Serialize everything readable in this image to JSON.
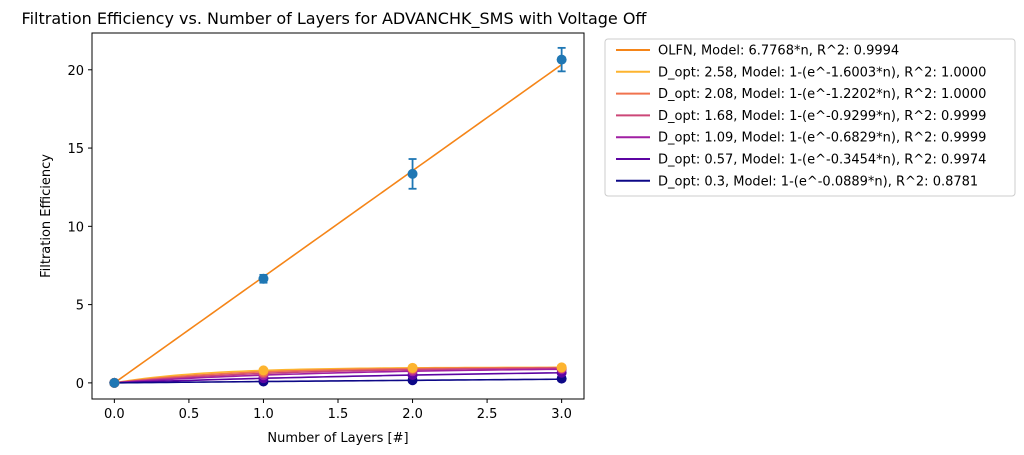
{
  "chart_data": {
    "type": "line",
    "title": "Filtration Efficiency vs. Number of Layers for ADVANCHK_SMS with Voltage Off",
    "xlabel": "Number of Layers [#]",
    "ylabel": "Filtration Efficiency",
    "xlim": [
      -0.15,
      3.15
    ],
    "ylim": [
      -1.03,
      22.35
    ],
    "x_ticks": [
      0.0,
      0.5,
      1.0,
      1.5,
      2.0,
      2.5,
      3.0
    ],
    "x_tick_labels": [
      "0.0",
      "0.5",
      "1.0",
      "1.5",
      "2.0",
      "2.5",
      "3.0"
    ],
    "y_ticks": [
      0,
      5,
      10,
      15,
      20
    ],
    "y_tick_labels": [
      "0",
      "5",
      "10",
      "15",
      "20"
    ],
    "grid": false,
    "legend_position": "outside-right-top",
    "measured": {
      "x": [
        0,
        1,
        2,
        3
      ],
      "y": [
        0,
        6.65,
        13.35,
        20.65
      ],
      "yerr": [
        0,
        0.25,
        0.95,
        0.75
      ],
      "color": "#1f77b4"
    },
    "series": [
      {
        "name": " OLFN, Model: 6.7768*n, R^2: 0.9994",
        "model": "linear",
        "k": 6.7768,
        "color": "#f58518",
        "x": [
          0,
          1,
          2,
          3
        ],
        "y": [
          0,
          6.65,
          13.35,
          20.65
        ]
      },
      {
        "name": "D_opt: 2.58, Model: 1-(e^-1.6003*n), R^2: 1.0000",
        "model": "exp",
        "k": 1.6003,
        "color": "#fdb42f",
        "x": [
          0,
          1,
          2,
          3
        ],
        "y": [
          0,
          0.8,
          0.96,
          0.99
        ]
      },
      {
        "name": "D_opt: 2.08, Model: 1-(e^-1.2202*n), R^2: 1.0000",
        "model": "exp",
        "k": 1.2202,
        "color": "#f0734e",
        "x": [
          0,
          1,
          2,
          3
        ],
        "y": [
          0,
          0.7,
          0.91,
          0.97
        ]
      },
      {
        "name": "D_opt: 1.68, Model: 1-(e^-0.9299*n), R^2: 0.9999",
        "model": "exp",
        "k": 0.9299,
        "color": "#cc4778",
        "x": [
          0,
          1,
          2,
          3
        ],
        "y": [
          0,
          0.61,
          0.84,
          0.94
        ]
      },
      {
        "name": "D_opt: 1.09, Model: 1-(e^-0.6829*n), R^2: 0.9999",
        "model": "exp",
        "k": 0.6829,
        "color": "#a01fa3",
        "x": [
          0,
          1,
          2,
          3
        ],
        "y": [
          0,
          0.49,
          0.74,
          0.87
        ]
      },
      {
        "name": "D_opt: 0.57, Model: 1-(e^-0.3454*n), R^2: 0.9974",
        "model": "exp",
        "k": 0.3454,
        "color": "#5c04a2",
        "x": [
          0,
          1,
          2,
          3
        ],
        "y": [
          0,
          0.3,
          0.5,
          0.65
        ]
      },
      {
        "name": "D_opt: 0.3, Model: 1-(e^-0.0889*n), R^2: 0.8781",
        "model": "exp",
        "k": 0.0889,
        "color": "#0d0887",
        "x": [
          0,
          1,
          2,
          3
        ],
        "y": [
          0,
          0.09,
          0.17,
          0.27
        ]
      }
    ]
  }
}
